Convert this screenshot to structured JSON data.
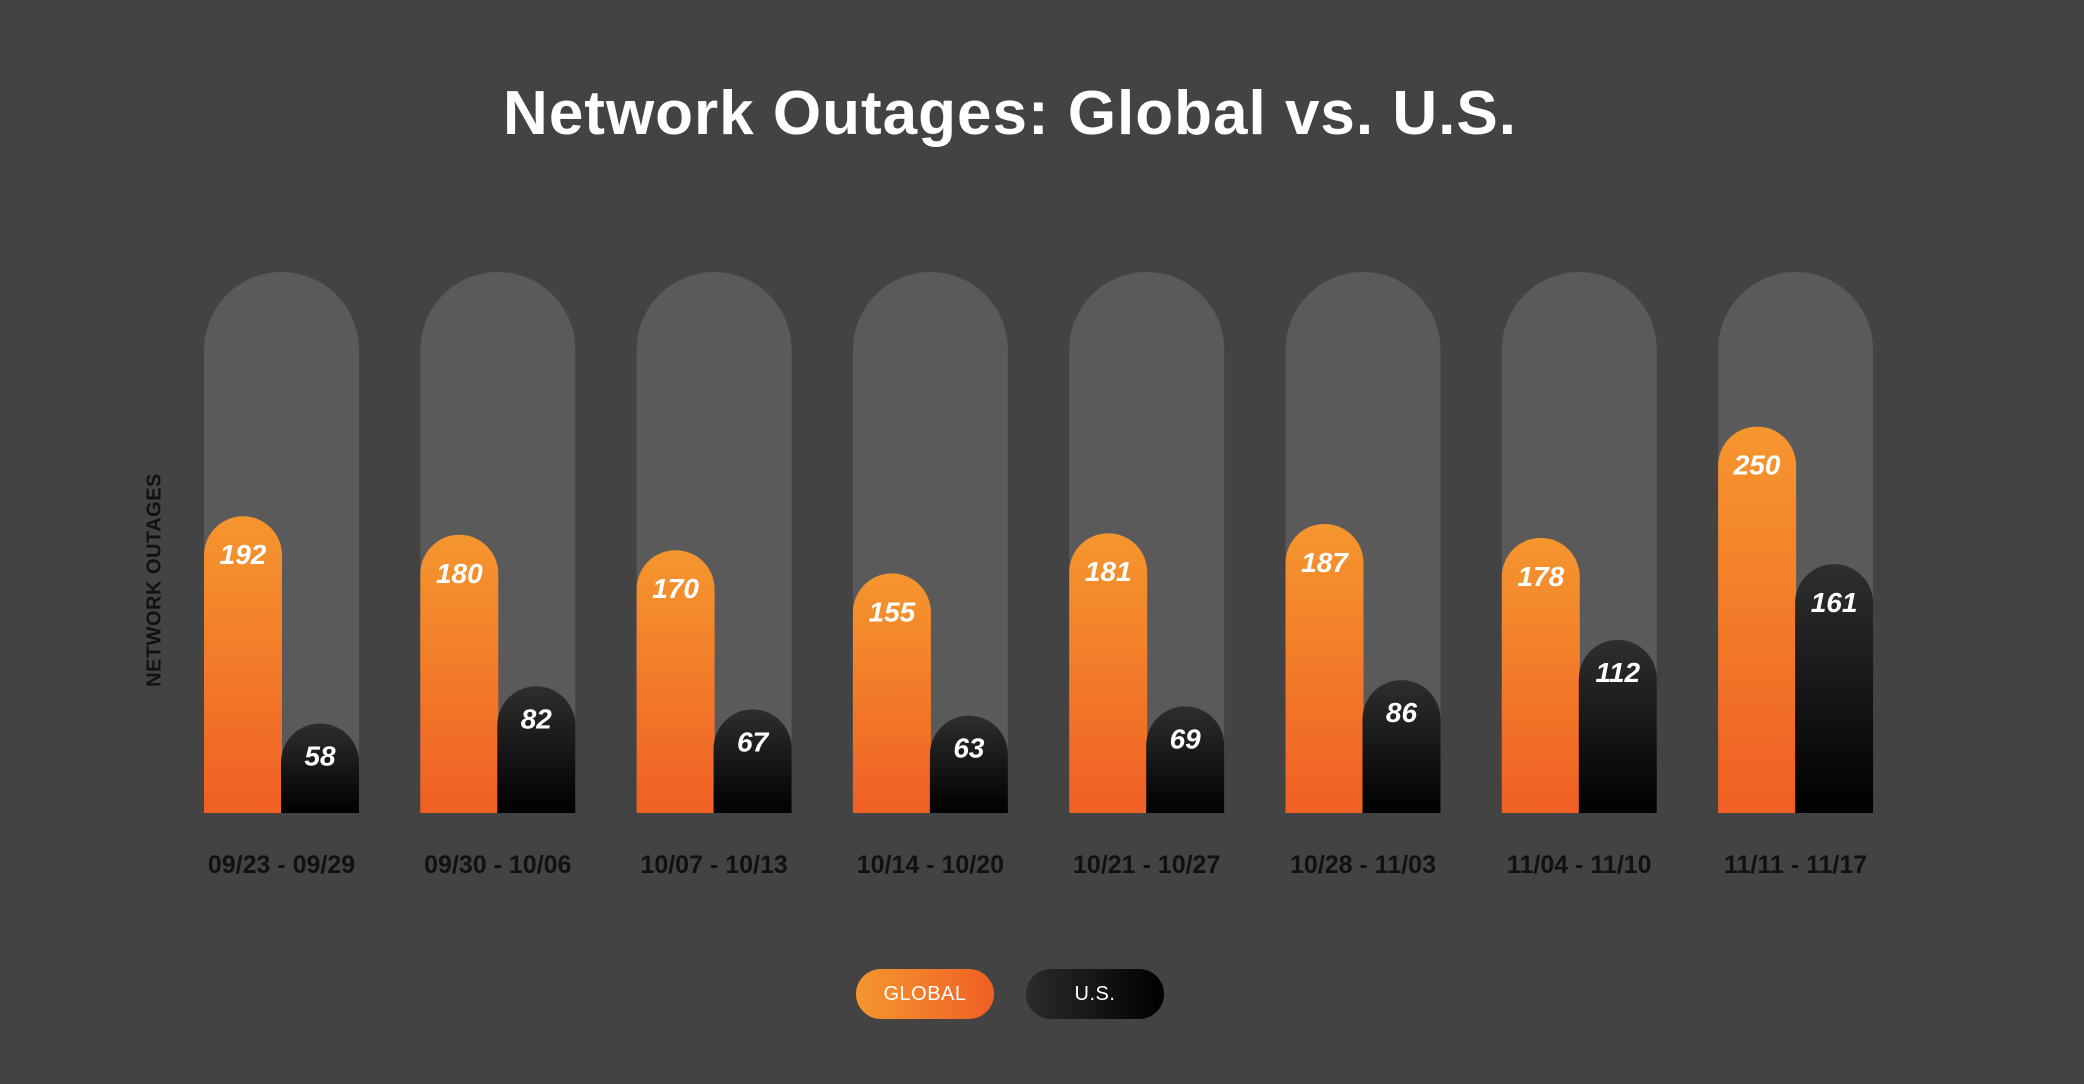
{
  "chart_data": {
    "type": "bar",
    "title": "Network Outages: Global vs. U.S.",
    "xlabel": "",
    "ylabel": "NETWORK OUTAGES",
    "ylim": [
      0,
      350
    ],
    "grid": false,
    "legend_position": "bottom-center",
    "categories": [
      "09/23 - 09/29",
      "09/30 - 10/06",
      "10/07 - 10/13",
      "10/14 - 10/20",
      "10/21 - 10/27",
      "10/28 - 11/03",
      "11/04 - 11/10",
      "11/11 - 11/17"
    ],
    "series": [
      {
        "name": "GLOBAL",
        "values": [
          192,
          180,
          170,
          155,
          181,
          187,
          178,
          250
        ],
        "color_top": "#f5962e",
        "color_bottom": "#f05f24"
      },
      {
        "name": "U.S.",
        "values": [
          58,
          82,
          67,
          63,
          69,
          86,
          112,
          161
        ],
        "color_top": "#2e2e2e",
        "color_bottom": "#000000"
      }
    ]
  }
}
